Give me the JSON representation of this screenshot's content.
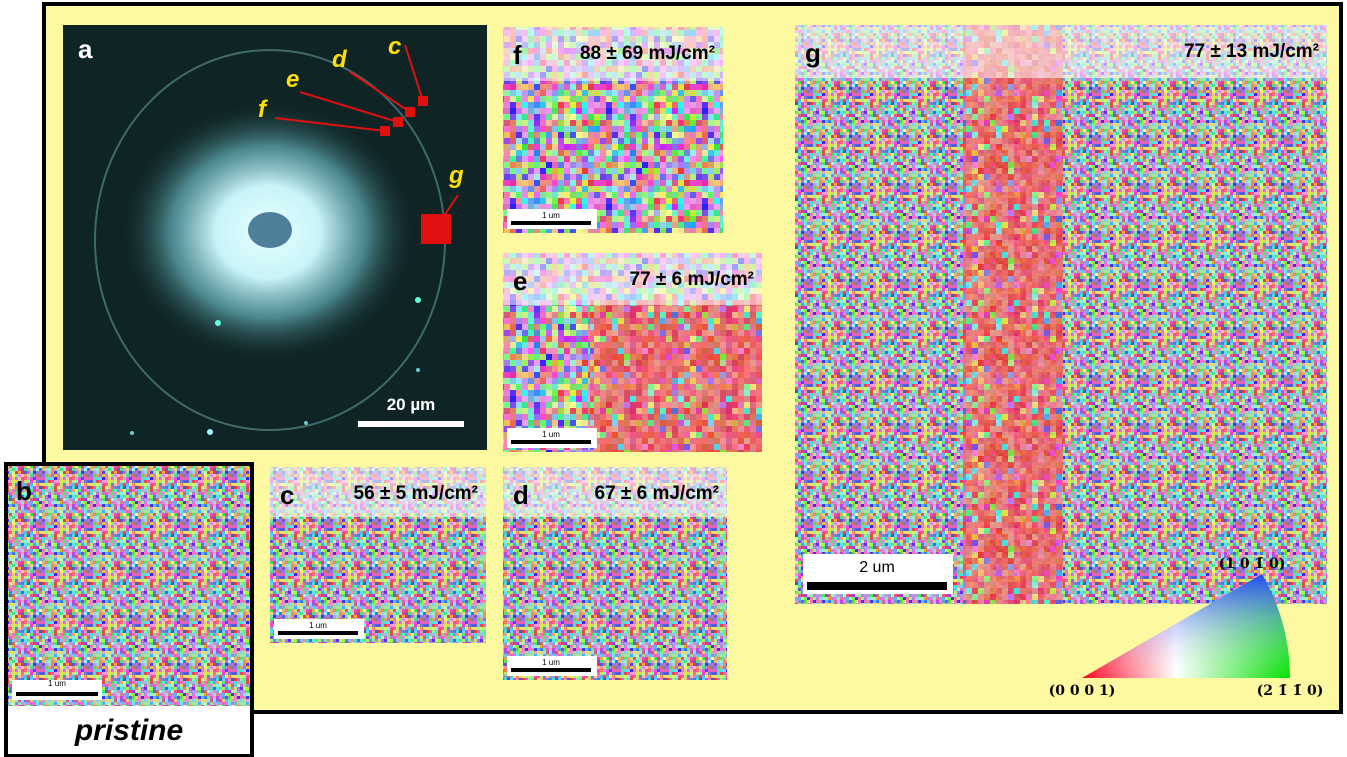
{
  "panels": {
    "a": {
      "label": "a",
      "scale_bar": "20 µm",
      "markers": [
        "c",
        "d",
        "e",
        "f",
        "g"
      ]
    },
    "b": {
      "label": "b",
      "scale_bar": "1 um",
      "caption": "pristine"
    },
    "c": {
      "label": "c",
      "fluence": "56 ± 5 mJ/cm²",
      "scale_bar": "1 um"
    },
    "d": {
      "label": "d",
      "fluence": "67 ± 6 mJ/cm²",
      "scale_bar": "1 um"
    },
    "e": {
      "label": "e",
      "fluence": "77 ± 6 mJ/cm²",
      "scale_bar": "1 um"
    },
    "f": {
      "label": "f",
      "fluence": "88 ± 69 mJ/cm²",
      "scale_bar": "1 um"
    },
    "g": {
      "label": "g",
      "fluence": "77 ± 13 mJ/cm²",
      "scale_bar": "2 um"
    }
  },
  "legend": {
    "top": "(1 0 1̄ 0)",
    "left": "(0 0 0 1)",
    "right": "(2 1̄ 1̄ 0)"
  }
}
